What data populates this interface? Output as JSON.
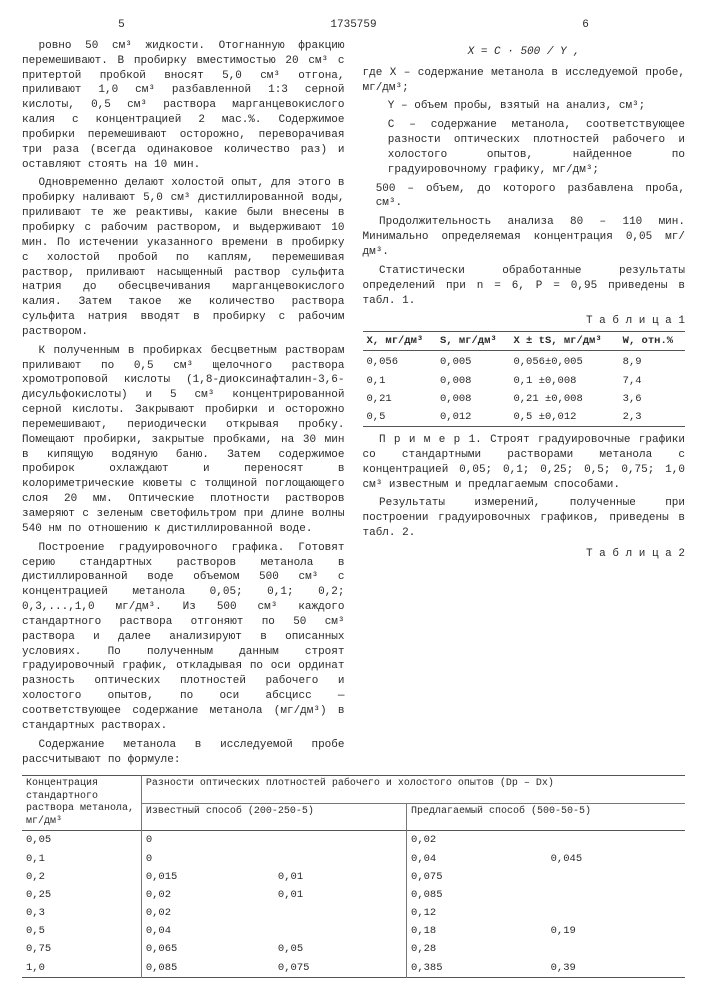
{
  "doc_number": "1735759",
  "page_left": "5",
  "page_right": "6",
  "line_numbers": [
    "5",
    "10",
    "15",
    "20",
    "25",
    "30",
    "35",
    "40",
    "45",
    "50",
    "55"
  ],
  "left_col": {
    "p1": "ровно 50 см³ жидкости. Отогнанную фракцию перемешивают. В пробирку вместимостью 20 см³ с притертой пробкой вносят 5,0 см³ отгона, приливают 1,0 см³ разбавленной 1:3 серной кислоты, 0,5 см³ раствора марганцевокислого калия с концентрацией 2 мас.%. Содержимое пробирки перемешивают осторожно, переворачивая три раза (всегда одинаковое количество раз) и оставляют стоять на 10 мин.",
    "p2": "Одновременно делают холостой опыт, для этого в пробирку наливают 5,0 см³ дистиллированной воды, приливают те же реактивы, какие были внесены в пробирку с рабочим раствором, и выдерживают 10 мин. По истечении указанного времени в пробирку с холостой пробой по каплям, перемешивая раствор, приливают насыщенный раствор сульфита натрия до обесцвечивания марганцевокислого калия. Затем такое же количество раствора сульфита натрия вводят в пробирку с рабочим раствором.",
    "p3": "К полученным в пробирках бесцветным растворам приливают по 0,5 см³ щелочного раствора хромотроповой кислоты (1,8-диоксинафталин-3,6-дисульфокислоты) и 5 см³ концентрированной серной кислоты. Закрывают пробирки и осторожно перемешивают, периодически открывая пробку. Помещают пробирки, закрытые пробками, на 30 мин в кипящую водяную баню. Затем содержимое пробирок охлаждают и переносят в колориметрические кюветы с толщиной поглощающего слоя 20 мм. Оптические плотности растворов замеряют с зеленым светофильтром при длине волны 540 нм по отношению к дистиллированной воде.",
    "p4": "Построение градуировочного графика. Готовят серию стандартных растворов метанола в дистиллированной воде объемом 500 см³ с концентрацией метанола 0,05; 0,1; 0,2; 0,3,...,1,0 мг/дм³. Из 500 см³ каждого стандартного раствора отгоняют по 50 см³ раствора и далее анализируют в описанных условиях. По полученным данным строят градуировочный график, откладывая по оси ординат разность оптических плотностей рабочего и холостого опытов, по оси абсцисс — соответствующее содержание метанола (мг/дм³) в стандартных растворах.",
    "p5": "Содержание метанола в исследуемой пробе рассчитывают по формуле:"
  },
  "right_col": {
    "formula": "X = C · 500 / Y ,",
    "defs_lead": "где X –",
    "def_x": "содержание метанола в исследуемой пробе, мг/дм³;",
    "def_y_lbl": "Y –",
    "def_y": "объем пробы, взятый на анализ, см³;",
    "def_c_lbl": "C –",
    "def_c": "содержание метанола, соответствующее разности оптических плотностей рабочего и холостого опытов, найденное по градуировочному графику, мг/дм³;",
    "def_500_lbl": "500 –",
    "def_500": "объем, до которого разбавлена проба, см³.",
    "p_after_defs": "Продолжительность анализа 80 – 110 мин. Минимально определяемая концентрация 0,05 мг/дм³.",
    "p_stats": "Статистически обработанные результаты определений при n = 6, P = 0,95 приведены в табл. 1.",
    "table1_title": "Т а б л и ц а 1",
    "table1": {
      "cols": [
        "X, мг/дм³",
        "S, мг/дм³",
        "X ± tS, мг/дм³",
        "W, отн.%"
      ],
      "rows": [
        [
          "0,056",
          "0,005",
          "0,056±0,005",
          "8,9"
        ],
        [
          "0,1",
          "0,008",
          "0,1 ±0,008",
          "7,4"
        ],
        [
          "0,21",
          "0,008",
          "0,21 ±0,008",
          "3,6"
        ],
        [
          "0,5",
          "0,012",
          "0,5 ±0,012",
          "2,3"
        ]
      ]
    },
    "p_ex1": "П р и м е р 1. Строят градуировочные графики со стандартными растворами метанола с концентрацией 0,05; 0,1; 0,25; 0,5; 0,75; 1,0 см³ известным и предлагаемым способами.",
    "p_ex1b": "Результаты измерений, полученные при построении градуировочных графиков, приведены в табл. 2.",
    "table2_title": "Т а б л и ц а 2"
  },
  "table2": {
    "col1_head": "Концентрация стандартного раствора метанола, мг/дм³",
    "col_group_head": "Разности оптических плотностей рабочего и холостого опытов (Dр – Dх)",
    "col2_head": "Известный способ (200-250-5)",
    "col3_head": "Предлагаемый способ (500-50-5)",
    "rows": [
      [
        "0,05",
        "0",
        "",
        "0,02",
        ""
      ],
      [
        "0,1",
        "0",
        "",
        "0,04",
        "0,045"
      ],
      [
        "0,2",
        "0,015",
        "0,01",
        "0,075",
        ""
      ],
      [
        "0,25",
        "0,02",
        "0,01",
        "0,085",
        ""
      ],
      [
        "0,3",
        "0,02",
        "",
        "0,12",
        ""
      ],
      [
        "0,5",
        "0,04",
        "",
        "0,18",
        "0,19"
      ],
      [
        "0,75",
        "0,065",
        "0,05",
        "0,28",
        ""
      ],
      [
        "1,0",
        "0,085",
        "0,075",
        "0,385",
        "0,39"
      ]
    ]
  }
}
